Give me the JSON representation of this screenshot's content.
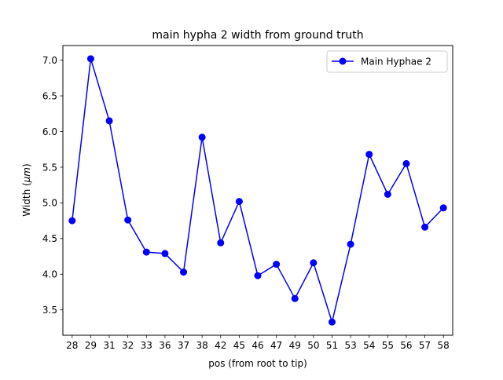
{
  "chart_data": {
    "type": "line",
    "title": "main hypha 2 width from ground truth",
    "xlabel": "pos (from root to tip)",
    "ylabel_prefix": "Width (",
    "ylabel_unit": "μm",
    "ylabel_suffix": ")",
    "categories": [
      "28",
      "29",
      "31",
      "32",
      "33",
      "36",
      "37",
      "38",
      "42",
      "45",
      "46",
      "47",
      "49",
      "50",
      "51",
      "53",
      "54",
      "55",
      "56",
      "57",
      "58"
    ],
    "series": [
      {
        "name": "Main Hyphae 2",
        "color": "#0000ff",
        "marker": "circle",
        "values": [
          4.75,
          7.02,
          6.15,
          4.76,
          4.31,
          4.29,
          4.03,
          5.92,
          4.44,
          5.02,
          3.98,
          4.14,
          3.66,
          4.16,
          3.33,
          4.42,
          5.68,
          5.12,
          5.55,
          4.66,
          4.93
        ]
      }
    ],
    "yticks": [
      "3.5",
      "4.0",
      "4.5",
      "5.0",
      "5.5",
      "6.0",
      "6.5",
      "7.0"
    ],
    "ylim": [
      3.145,
      7.205
    ],
    "legend_position": "upper right",
    "grid": false
  }
}
